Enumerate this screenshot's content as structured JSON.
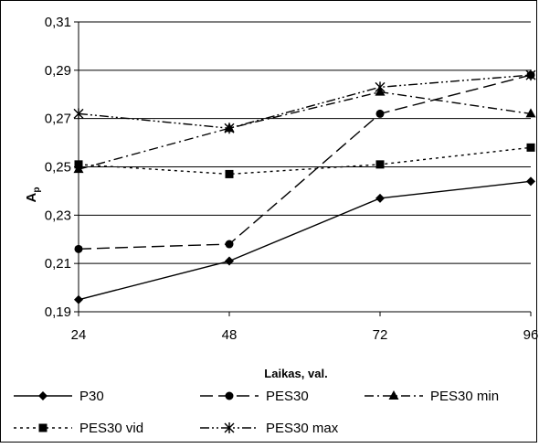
{
  "chart_data": {
    "type": "line",
    "x": [
      24,
      48,
      72,
      96
    ],
    "xlabel": "Laikas, val.",
    "ylabel": "A",
    "ylabel_sub": "p",
    "ylim": [
      0.19,
      0.31
    ],
    "yticks": [
      0.19,
      0.21,
      0.23,
      0.25,
      0.27,
      0.29,
      0.31
    ],
    "ytick_labels": [
      "0,19",
      "0,21",
      "0,23",
      "0,25",
      "0,27",
      "0,29",
      "0,31"
    ],
    "xtick_labels": [
      "24",
      "48",
      "72",
      "96"
    ],
    "grid": true,
    "legend_position": "bottom",
    "series": [
      {
        "name": "P30",
        "values": [
          0.195,
          0.211,
          0.237,
          0.244
        ],
        "marker": "diamond",
        "dash": "solid"
      },
      {
        "name": "PES30",
        "values": [
          0.216,
          0.218,
          0.272,
          0.288
        ],
        "marker": "circle",
        "dash": "long-dash"
      },
      {
        "name": "PES30 min",
        "values": [
          0.249,
          0.266,
          0.281,
          0.272
        ],
        "marker": "triangle",
        "dash": "dash-dot"
      },
      {
        "name": "PES30 vid",
        "values": [
          0.251,
          0.247,
          0.251,
          0.258
        ],
        "marker": "square",
        "dash": "dotted"
      },
      {
        "name": "PES30 max",
        "values": [
          0.272,
          0.266,
          0.283,
          0.288
        ],
        "marker": "star",
        "dash": "dash-dot-dot"
      }
    ]
  }
}
